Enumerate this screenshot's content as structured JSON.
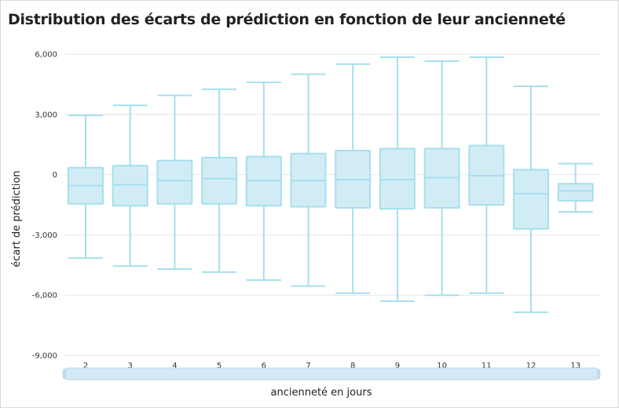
{
  "chart_data": {
    "type": "boxplot",
    "title": "Distribution des écarts de prédiction en fonction de leur ancienneté",
    "xlabel": "ancienneté en jours",
    "ylabel": "écart de prédiction",
    "ylim": [
      -9000,
      6000
    ],
    "yticks": [
      6000,
      3000,
      0,
      -3000,
      -6000,
      -9000
    ],
    "ytick_labels": [
      "6,000",
      "3,000",
      "0",
      "-3,000",
      "-6,000",
      "-9,000"
    ],
    "categories": [
      "2",
      "3",
      "4",
      "5",
      "6",
      "7",
      "8",
      "9",
      "10",
      "11",
      "12",
      "13"
    ],
    "boxes": [
      {
        "min": -4150,
        "q1": -1450,
        "median": -550,
        "q3": 350,
        "max": 2950
      },
      {
        "min": -4550,
        "q1": -1550,
        "median": -500,
        "q3": 450,
        "max": 3450
      },
      {
        "min": -4700,
        "q1": -1450,
        "median": -300,
        "q3": 700,
        "max": 3950
      },
      {
        "min": -4850,
        "q1": -1450,
        "median": -200,
        "q3": 850,
        "max": 4250
      },
      {
        "min": -5250,
        "q1": -1550,
        "median": -300,
        "q3": 900,
        "max": 4600
      },
      {
        "min": -5550,
        "q1": -1600,
        "median": -300,
        "q3": 1050,
        "max": 5000
      },
      {
        "min": -5900,
        "q1": -1650,
        "median": -250,
        "q3": 1200,
        "max": 5500
      },
      {
        "min": -6300,
        "q1": -1700,
        "median": -250,
        "q3": 1300,
        "max": 5850
      },
      {
        "min": -6000,
        "q1": -1650,
        "median": -150,
        "q3": 1300,
        "max": 5650
      },
      {
        "min": -5900,
        "q1": -1500,
        "median": -50,
        "q3": 1450,
        "max": 5850
      },
      {
        "min": -6850,
        "q1": -2700,
        "median": -950,
        "q3": 250,
        "max": 4400
      },
      {
        "min": -1850,
        "q1": -1300,
        "median": -800,
        "q3": -450,
        "max": 550
      }
    ],
    "grid": true,
    "colors": {
      "box_fill": "#d2ecf6",
      "box_stroke": "#a6dfec",
      "grid": "#e6e6e6",
      "scrollbar": "#d3e9f5"
    }
  }
}
